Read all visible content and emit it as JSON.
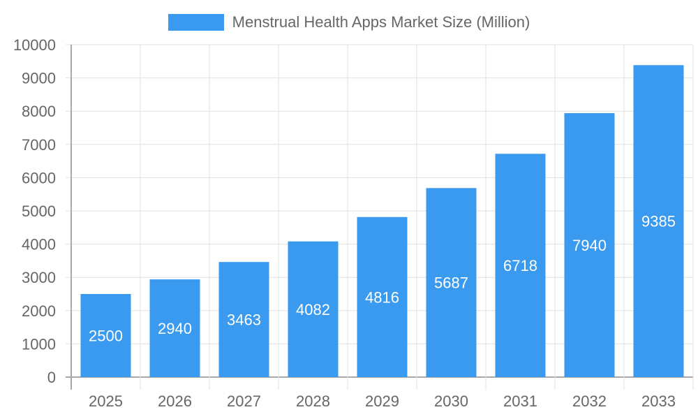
{
  "legend": {
    "label": "Menstrual Health Apps Market Size (Million)",
    "color": "#3a9af0"
  },
  "colors": {
    "bar": "#3a9af0",
    "grid": "#e0e0e0",
    "axis": "#a8a8a8",
    "text": "#666666"
  },
  "chart_data": {
    "type": "bar",
    "title": "",
    "categories": [
      "2025",
      "2026",
      "2027",
      "2028",
      "2029",
      "2030",
      "2031",
      "2032",
      "2033"
    ],
    "series": [
      {
        "name": "Menstrual Health Apps Market Size (Million)",
        "values": [
          2500,
          2940,
          3463,
          4082,
          4816,
          5687,
          6718,
          7940,
          9385
        ]
      }
    ],
    "xlabel": "",
    "ylabel": "",
    "ylim": [
      0,
      10000
    ],
    "yticks": [
      0,
      1000,
      2000,
      3000,
      4000,
      5000,
      6000,
      7000,
      8000,
      9000,
      10000
    ],
    "grid": true,
    "legend_position": "top",
    "data_labels": true
  }
}
